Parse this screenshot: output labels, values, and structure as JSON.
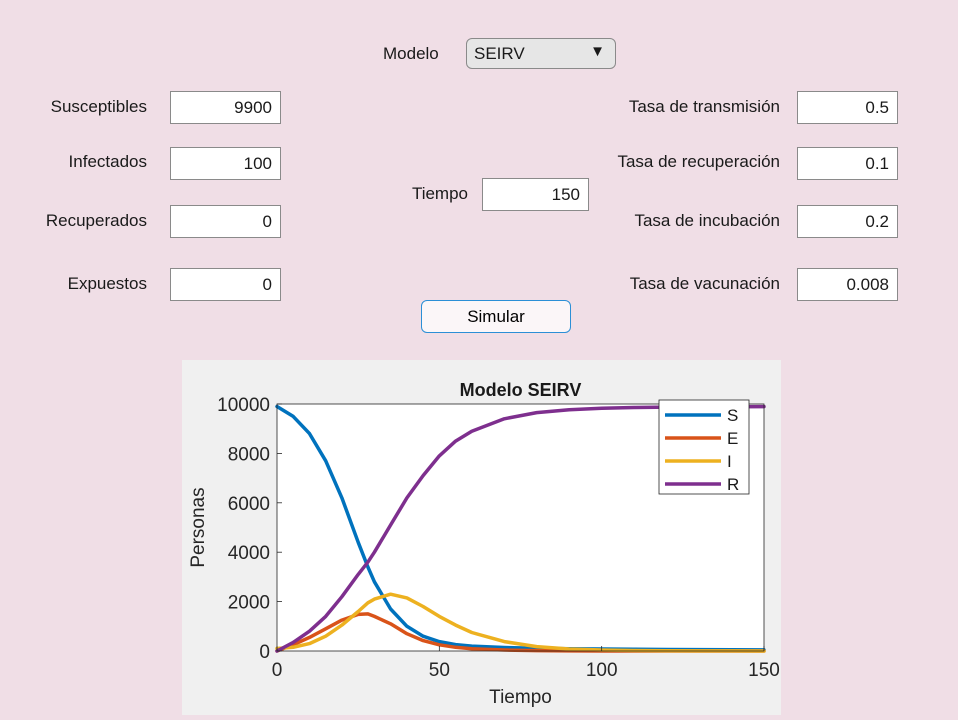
{
  "form": {
    "model_label": "Modelo",
    "model_value": "SEIRV",
    "susceptibles_label": "Susceptibles",
    "susceptibles_value": "9900",
    "infectados_label": "Infectados",
    "infectados_value": "100",
    "recuperados_label": "Recuperados",
    "recuperados_value": "0",
    "expuestos_label": "Expuestos",
    "expuestos_value": "0",
    "tiempo_label": "Tiempo",
    "tiempo_value": "150",
    "transmision_label": "Tasa de transmisión",
    "transmision_value": "0.5",
    "recuperacion_label": "Tasa de recuperación",
    "recuperacion_value": "0.1",
    "incubacion_label": "Tasa de incubación",
    "incubacion_value": "0.2",
    "vacunacion_label": "Tasa de vacunación",
    "vacunacion_value": "0.008",
    "simulate_label": "Simular",
    "dropdown_arrow": "▼"
  },
  "chart_data": {
    "type": "line",
    "title": "Modelo SEIRV",
    "xlabel": "Tiempo",
    "ylabel": "Personas",
    "xlim": [
      0,
      150
    ],
    "ylim": [
      0,
      10000
    ],
    "xticks": [
      0,
      50,
      100,
      150
    ],
    "yticks": [
      0,
      2000,
      4000,
      6000,
      8000,
      10000
    ],
    "grid": false,
    "legend_position": "top-right",
    "x": [
      0,
      5,
      10,
      15,
      20,
      25,
      28,
      30,
      35,
      40,
      45,
      50,
      55,
      60,
      70,
      80,
      90,
      100,
      110,
      120,
      130,
      140,
      150
    ],
    "series": [
      {
        "name": "S",
        "color": "#0072bd",
        "values": [
          9900,
          9500,
          8800,
          7700,
          6200,
          4400,
          3400,
          2800,
          1700,
          1000,
          600,
          380,
          260,
          200,
          140,
          110,
          90,
          80,
          70,
          60,
          55,
          50,
          45
        ]
      },
      {
        "name": "E",
        "color": "#d95319",
        "values": [
          0,
          250,
          550,
          900,
          1250,
          1480,
          1500,
          1400,
          1100,
          700,
          420,
          250,
          150,
          90,
          40,
          15,
          5,
          0,
          0,
          0,
          0,
          0,
          0
        ]
      },
      {
        "name": "I",
        "color": "#edb120",
        "values": [
          100,
          150,
          300,
          600,
          1050,
          1600,
          1950,
          2100,
          2300,
          2150,
          1800,
          1400,
          1050,
          750,
          380,
          180,
          80,
          40,
          20,
          10,
          5,
          3,
          2
        ]
      },
      {
        "name": "R",
        "color": "#7e2f8e",
        "values": [
          0,
          350,
          800,
          1400,
          2200,
          3100,
          3600,
          4000,
          5100,
          6200,
          7100,
          7900,
          8500,
          8900,
          9400,
          9650,
          9770,
          9830,
          9860,
          9875,
          9885,
          9890,
          9895
        ]
      }
    ]
  }
}
